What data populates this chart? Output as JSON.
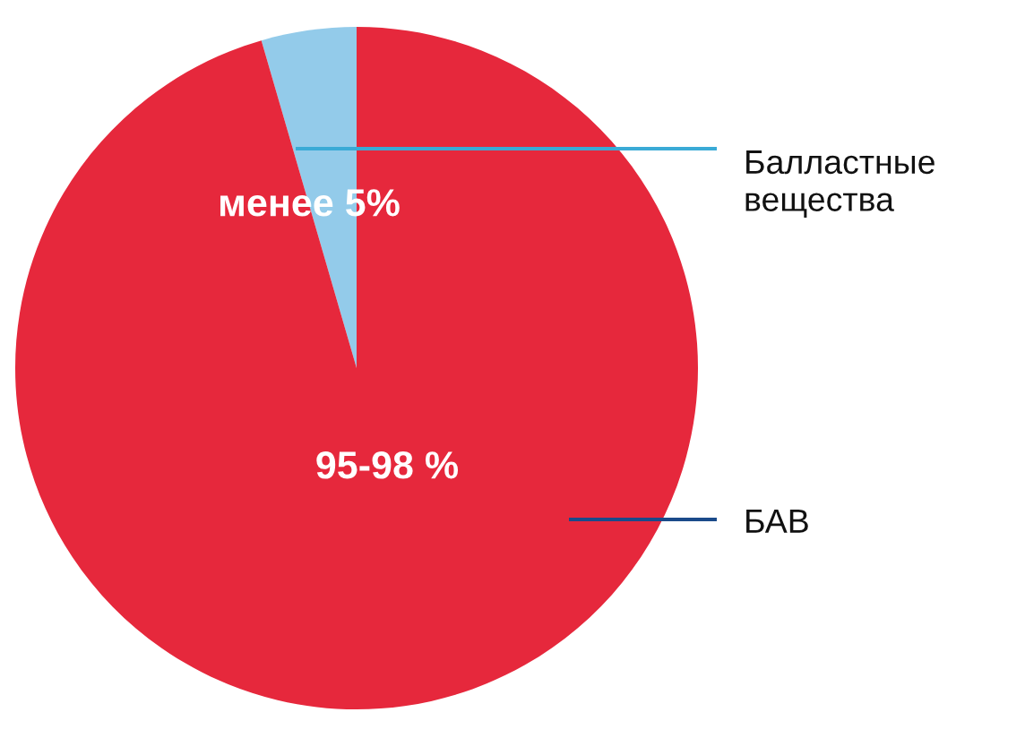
{
  "chart_data": {
    "type": "pie",
    "categories": [
      "Балластные вещества",
      "БАВ"
    ],
    "values": [
      4.5,
      95.5
    ],
    "colors": [
      "#93cbea",
      "#e6283c"
    ],
    "value_labels": [
      "менее 5%",
      "95-98 %"
    ],
    "legend": false
  }
}
